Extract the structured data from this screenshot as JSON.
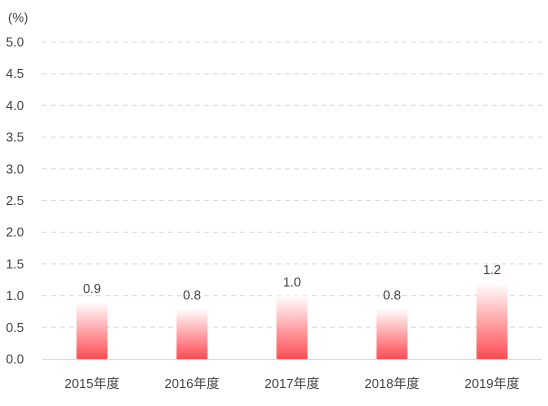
{
  "chart_data": {
    "type": "bar",
    "unit_label": "(%)",
    "categories": [
      "2015年度",
      "2016年度",
      "2017年度",
      "2018年度",
      "2019年度"
    ],
    "values": [
      0.9,
      0.8,
      1.0,
      0.8,
      1.2
    ],
    "value_labels": [
      "0.9",
      "0.8",
      "1.0",
      "0.8",
      "1.2"
    ],
    "ylim": [
      0,
      5.0
    ],
    "yticks": [
      "0.0",
      "0.5",
      "1.0",
      "1.5",
      "2.0",
      "2.5",
      "3.0",
      "3.5",
      "4.0",
      "4.5",
      "5.0"
    ],
    "grid": true,
    "grid_style": "dashed",
    "colors": {
      "bar_top": "#ffffff",
      "bar_bottom": "#ff4b52",
      "grid": "#d9d9d9",
      "axis": "#d9d9d9",
      "text": "#404040"
    }
  }
}
